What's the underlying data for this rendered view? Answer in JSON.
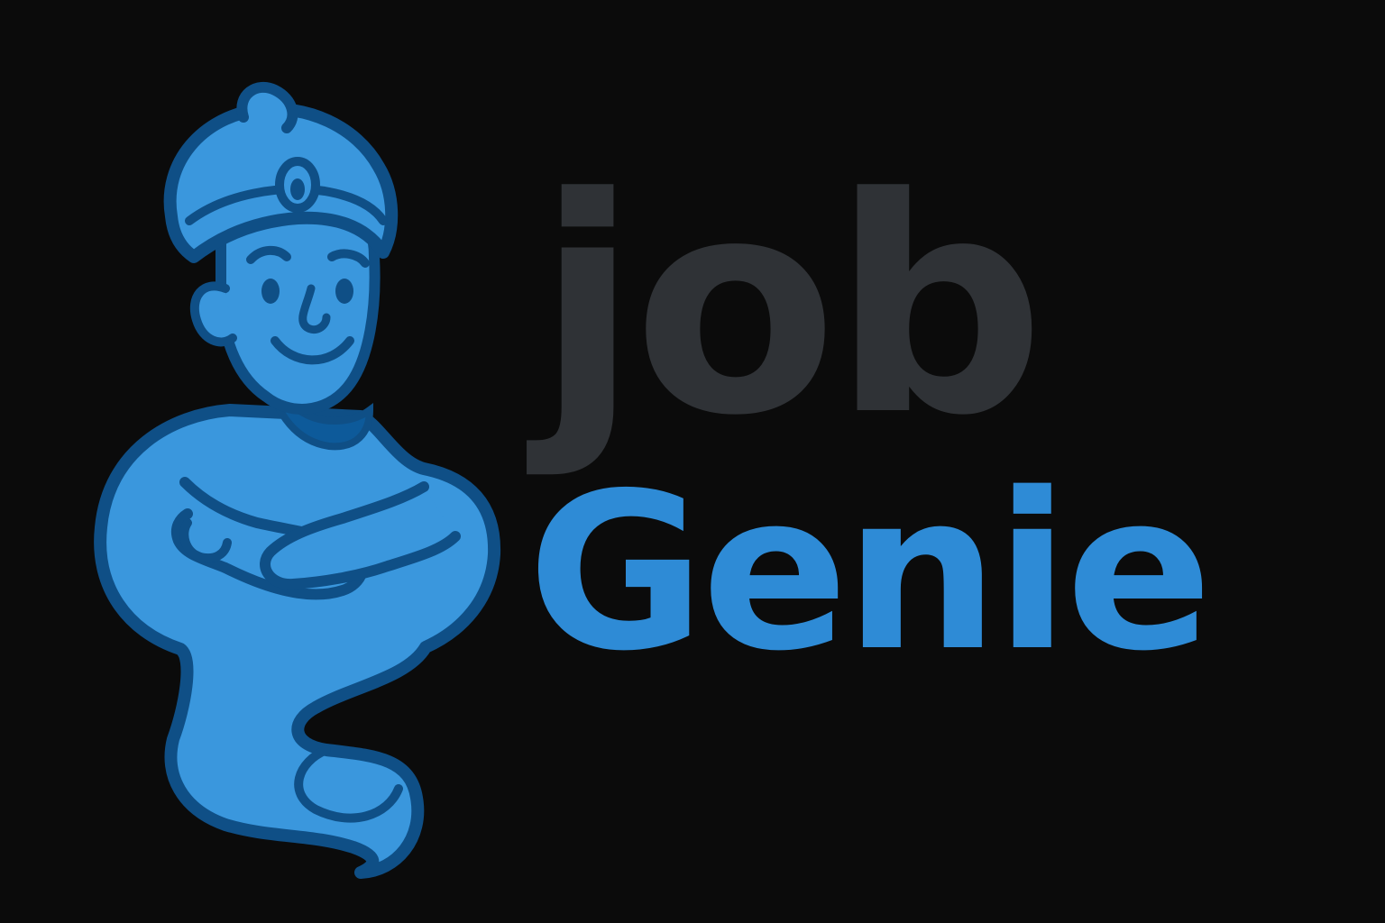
{
  "logo": {
    "line1": "job",
    "line2": "Genie",
    "mascot_icon": "genie-mascot-icon"
  },
  "colors": {
    "background": "#0b0b0b",
    "job_text": "#2f3236",
    "genie_text": "#2e8bd6",
    "genie_fill": "#3a97dd",
    "genie_outline": "#0f4f86",
    "genie_shadow": "#0d5a9a"
  }
}
